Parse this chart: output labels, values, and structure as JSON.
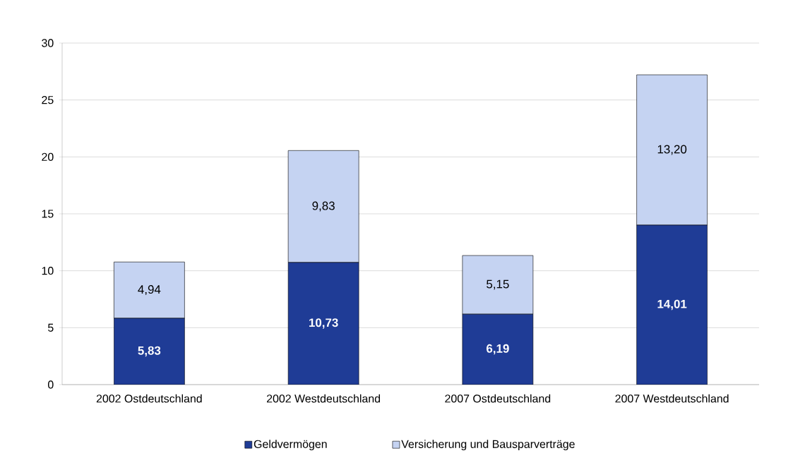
{
  "chart_data": {
    "type": "bar",
    "stacked": true,
    "categories": [
      "2002 Ostdeutschland",
      "2002 Westdeutschland",
      "2007 Ostdeutschland",
      "2007 Westdeutschland"
    ],
    "series": [
      {
        "name": "Geldvermögen",
        "color": "#1f3c96",
        "values": [
          5.83,
          10.73,
          6.19,
          14.01
        ],
        "value_labels": [
          "5,83",
          "10,73",
          "6,19",
          "14,01"
        ]
      },
      {
        "name": "Versicherung und Bausparverträge",
        "color": "#c5d3f2",
        "values": [
          4.94,
          9.83,
          5.15,
          13.2
        ],
        "value_labels": [
          "4,94",
          "9,83",
          "5,15",
          "13,20"
        ]
      }
    ],
    "ylim": [
      0,
      30
    ],
    "yticks": [
      0,
      5,
      10,
      15,
      20,
      25,
      30
    ],
    "grid": "y",
    "legend": "bottom"
  }
}
